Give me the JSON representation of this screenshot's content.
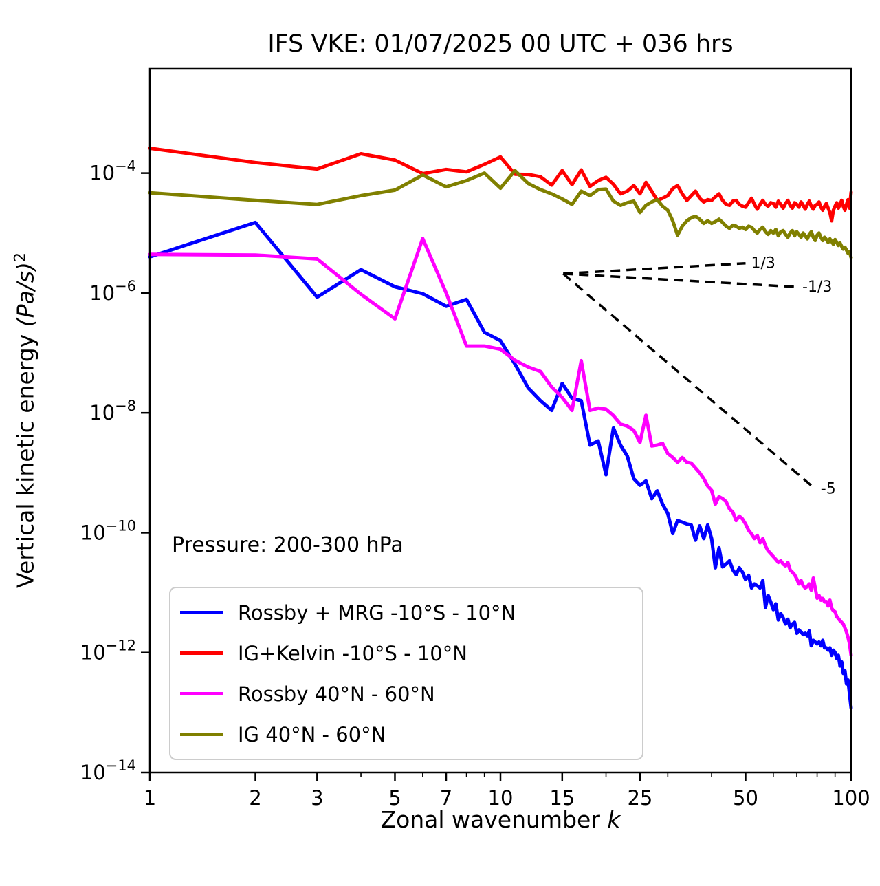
{
  "title": "IFS VKE: 01/07/2025 00 UTC + 036 hrs",
  "annotation": {
    "pressure_label": "Pressure: 200-300 hPa"
  },
  "axes": {
    "xlabel_text": "Zonal wavenumber ",
    "xlabel_var": "k",
    "ylabel_text": "Vertical kinetic energy ",
    "ylabel_unit": "(Pa/s)",
    "ylabel_exponent": "2",
    "x_range": [
      1,
      100
    ],
    "x_major_ticks": [
      1,
      2,
      3,
      5,
      7,
      10,
      15,
      25,
      50,
      100
    ],
    "x_minor_ticks": [
      4,
      6,
      8,
      9,
      20,
      30,
      40,
      60,
      70,
      80,
      90
    ],
    "y_tick_exponents": [
      -4,
      -6,
      -8,
      -10,
      -12,
      -14
    ],
    "y_range_exponents": [
      -14,
      -2.26
    ],
    "grid": false
  },
  "reference_guides": [
    {
      "label": "1/3",
      "slope": 0.333,
      "from": {
        "k": 15.1,
        "v": 2.1e-06
      },
      "to": {
        "k": 50,
        "v": 3.13e-06
      }
    },
    {
      "label": "-1/3",
      "slope": -0.333,
      "from": {
        "k": 15.1,
        "v": 2.1e-06
      },
      "to": {
        "k": 70,
        "v": 1.26e-06
      }
    },
    {
      "label": "-5",
      "slope": -5,
      "from": {
        "k": 15.1,
        "v": 2.1e-06
      },
      "to": {
        "k": 79,
        "v": 5.4e-10
      }
    }
  ],
  "chart_data": {
    "type": "line",
    "x_scale": "log",
    "y_scale": "log",
    "title": "IFS VKE: 01/07/2025 00 UTC + 036 hrs",
    "xlabel": "Zonal wavenumber k",
    "ylabel": "Vertical kinetic energy (Pa/s)^2",
    "xlim": [
      1,
      100
    ],
    "ylim": [
      1e-14,
      0.0055
    ],
    "legend_position": "lower-left",
    "x": [
      1,
      2,
      3,
      4,
      5,
      6,
      7,
      8,
      9,
      10,
      11,
      12,
      13,
      14,
      15,
      16,
      17,
      18,
      19,
      20,
      21,
      22,
      23,
      24,
      25,
      26,
      27,
      28,
      29,
      30,
      31,
      32,
      33,
      34,
      35,
      36,
      37,
      38,
      39,
      40,
      41,
      42,
      43,
      44,
      45,
      46,
      47,
      48,
      49,
      50,
      51,
      52,
      53,
      54,
      55,
      56,
      57,
      58,
      59,
      60,
      61,
      62,
      63,
      64,
      65,
      66,
      67,
      68,
      69,
      70,
      71,
      72,
      73,
      74,
      75,
      76,
      77,
      78,
      79,
      80,
      81,
      82,
      83,
      84,
      85,
      86,
      87,
      88,
      89,
      90,
      91,
      92,
      93,
      94,
      95,
      96,
      97,
      98,
      99,
      100
    ],
    "series": [
      {
        "name": "Rossby + MRG -10°S - 10°N",
        "color": "#0000ff",
        "values": [
          4e-06,
          1.5e-05,
          8.5e-07,
          2.45e-06,
          1.27e-06,
          9.7e-07,
          6e-07,
          7.8e-07,
          2.2e-07,
          1.6e-07,
          6.5e-08,
          2.6e-08,
          1.6e-08,
          1.1e-08,
          3.1e-08,
          1.75e-08,
          1.6e-08,
          2.9e-09,
          3.4e-09,
          9.3e-10,
          5.6e-09,
          2.9e-09,
          1.9e-09,
          8e-10,
          6.2e-10,
          7.3e-10,
          3.7e-10,
          5e-10,
          3e-10,
          2.1e-10,
          9.7e-11,
          1.6e-10,
          1.5e-10,
          1.4e-10,
          1.35e-10,
          7.5e-11,
          1.3e-10,
          8e-11,
          1.35e-10,
          8e-11,
          2.6e-11,
          5.6e-11,
          2.7e-11,
          3e-11,
          3.4e-11,
          2.4e-11,
          2e-11,
          2.6e-11,
          2.2e-11,
          1.65e-11,
          1.95e-11,
          1.2e-11,
          1.4e-11,
          1.3e-11,
          1.2e-11,
          1.6e-11,
          5.7e-12,
          9e-12,
          7e-12,
          5.2e-12,
          6.5e-12,
          3.5e-12,
          4.5e-12,
          3.8e-12,
          3e-12,
          3.6e-12,
          2.6e-12,
          3e-12,
          3.2e-12,
          2.1e-12,
          2.4e-12,
          2.2e-12,
          2e-12,
          2.1e-12,
          1.9e-12,
          2.3e-12,
          1.3e-12,
          1.6e-12,
          1.5e-12,
          1.4e-12,
          1.5e-12,
          1.3e-12,
          1.6e-12,
          1.2e-12,
          1.2e-12,
          1.1e-12,
          1.2e-12,
          9e-13,
          1.1e-12,
          1e-12,
          8e-13,
          9e-13,
          6e-13,
          7e-13,
          4.5e-13,
          5e-13,
          3e-13,
          3.5e-13,
          2e-13,
          1.2e-13
        ]
      },
      {
        "name": "IG+Kelvin -10°S - 10°N",
        "color": "#ff0000",
        "values": [
          0.00026,
          0.00015,
          0.000117,
          0.00021,
          0.000165,
          9.8e-05,
          0.000115,
          0.000105,
          0.00014,
          0.000186,
          9.6e-05,
          9.5e-05,
          8.7e-05,
          6.3e-05,
          0.00011,
          6.4e-05,
          0.000113,
          6e-05,
          7.5e-05,
          8.5e-05,
          6.5e-05,
          4.5e-05,
          5e-05,
          6.2e-05,
          4.5e-05,
          7e-05,
          5e-05,
          3.5e-05,
          3.8e-05,
          4.2e-05,
          5.5e-05,
          6.2e-05,
          4.5e-05,
          3.5e-05,
          4.2e-05,
          5e-05,
          3.8e-05,
          3.3e-05,
          3.6e-05,
          3.5e-05,
          4e-05,
          4.5e-05,
          3.5e-05,
          3e-05,
          2.9e-05,
          3.4e-05,
          3.5e-05,
          3e-05,
          2.8e-05,
          2.7e-05,
          3.2e-05,
          3.8e-05,
          3e-05,
          2.5e-05,
          3e-05,
          3.5e-05,
          3e-05,
          2.8e-05,
          3.2e-05,
          3.1e-05,
          2.7e-05,
          3.4e-05,
          3e-05,
          2.6e-05,
          3.1e-05,
          3.5e-05,
          2.9e-05,
          2.6e-05,
          3.2e-05,
          3e-05,
          2.7e-05,
          3.3e-05,
          2.9e-05,
          2.5e-05,
          3e-05,
          3.4e-05,
          2.8e-05,
          2.5e-05,
          2.9e-05,
          3e-05,
          3.3e-05,
          2.7e-05,
          2.4e-05,
          2.8e-05,
          3.1e-05,
          2.6e-05,
          2.2e-05,
          1.6e-05,
          2.4e-05,
          2.8e-05,
          3.2e-05,
          2.6e-05,
          3e-05,
          3.5e-05,
          2.8e-05,
          2.4e-05,
          3e-05,
          3.6e-05,
          2.6e-05,
          4.8e-05
        ]
      },
      {
        "name": "Rossby 40°N - 60°N",
        "color": "#ff00ff",
        "values": [
          4.4e-06,
          4.3e-06,
          3.7e-06,
          9.5e-07,
          3.7e-07,
          8.1e-06,
          1e-06,
          1.3e-07,
          1.3e-07,
          1.15e-07,
          7.5e-08,
          5.8e-08,
          4.9e-08,
          2.7e-08,
          1.8e-08,
          1.1e-08,
          7.4e-08,
          1.1e-08,
          1.2e-08,
          1.15e-08,
          9e-09,
          6.5e-09,
          6e-09,
          5.1e-09,
          3.2e-09,
          9.1e-09,
          2.8e-09,
          2.9e-09,
          3.1e-09,
          2.1e-09,
          1.8e-09,
          1.5e-09,
          1.8e-09,
          1.5e-09,
          1.45e-09,
          1.2e-09,
          1e-09,
          8e-10,
          6e-10,
          5.1e-10,
          3e-10,
          4e-10,
          3.7e-10,
          3.3e-10,
          2.5e-10,
          2.2e-10,
          1.6e-10,
          1.9e-10,
          1.7e-10,
          1.4e-10,
          1.1e-10,
          9.5e-11,
          8e-11,
          9e-11,
          6.8e-11,
          8e-11,
          6e-11,
          5e-11,
          4.5e-11,
          4e-11,
          3.6e-11,
          3.2e-11,
          3.4e-11,
          3e-11,
          2.8e-11,
          3.2e-11,
          2.4e-11,
          2.2e-11,
          2e-11,
          1.7e-11,
          1.4e-11,
          1.6e-11,
          1.3e-11,
          1.2e-11,
          1.26e-11,
          1.4e-11,
          1.1e-11,
          1.75e-11,
          1.2e-11,
          8.1e-12,
          9e-12,
          7.5e-12,
          8e-12,
          7e-12,
          7.1e-12,
          6e-12,
          7.5e-12,
          5.5e-12,
          5e-12,
          4.8e-12,
          4e-12,
          3.7e-12,
          3.4e-12,
          3.2e-12,
          3e-12,
          2.6e-12,
          2.2e-12,
          1.8e-12,
          1.4e-12,
          9e-13
        ]
      },
      {
        "name": "IG 40°N - 60°N",
        "color": "#808000",
        "values": [
          4.7e-05,
          3.5e-05,
          3e-05,
          4.2e-05,
          5.2e-05,
          9.3e-05,
          5.9e-05,
          7.5e-05,
          0.0001,
          5.6e-05,
          0.00011,
          6.7e-05,
          5.3e-05,
          4.5e-05,
          3.7e-05,
          3e-05,
          5e-05,
          4.2e-05,
          5.3e-05,
          5.4e-05,
          3.4e-05,
          2.9e-05,
          3.2e-05,
          3.4e-05,
          2.2e-05,
          2.9e-05,
          3.3e-05,
          3.6e-05,
          2.8e-05,
          2.4e-05,
          1.6e-05,
          9.2e-06,
          1.3e-05,
          1.6e-05,
          1.8e-05,
          1.9e-05,
          1.7e-05,
          1.45e-05,
          1.6e-05,
          1.45e-05,
          1.55e-05,
          1.7e-05,
          1.5e-05,
          1.3e-05,
          1.2e-05,
          1.35e-05,
          1.3e-05,
          1.2e-05,
          1.25e-05,
          1.15e-05,
          1.3e-05,
          1.25e-05,
          1.1e-05,
          1e-05,
          1.15e-05,
          1.25e-05,
          1.05e-05,
          9.5e-06,
          1.1e-05,
          1e-05,
          1.15e-05,
          9e-06,
          1.05e-05,
          1.1e-05,
          9.5e-06,
          8.5e-06,
          1e-05,
          1.1e-05,
          9e-06,
          1.05e-05,
          9.5e-06,
          8.5e-06,
          1e-05,
          9e-06,
          8e-06,
          9.5e-06,
          1.05e-05,
          8.5e-06,
          7.5e-06,
          9.2e-06,
          1e-05,
          8.5e-06,
          7.5e-06,
          8.5e-06,
          7.8e-06,
          7e-06,
          8e-06,
          7.2e-06,
          6.5e-06,
          7.8e-06,
          7e-06,
          6.2e-06,
          6.8e-06,
          6e-06,
          5.4e-06,
          5.8e-06,
          5.2e-06,
          4.6e-06,
          4.9e-06,
          3.9e-06
        ]
      }
    ]
  }
}
